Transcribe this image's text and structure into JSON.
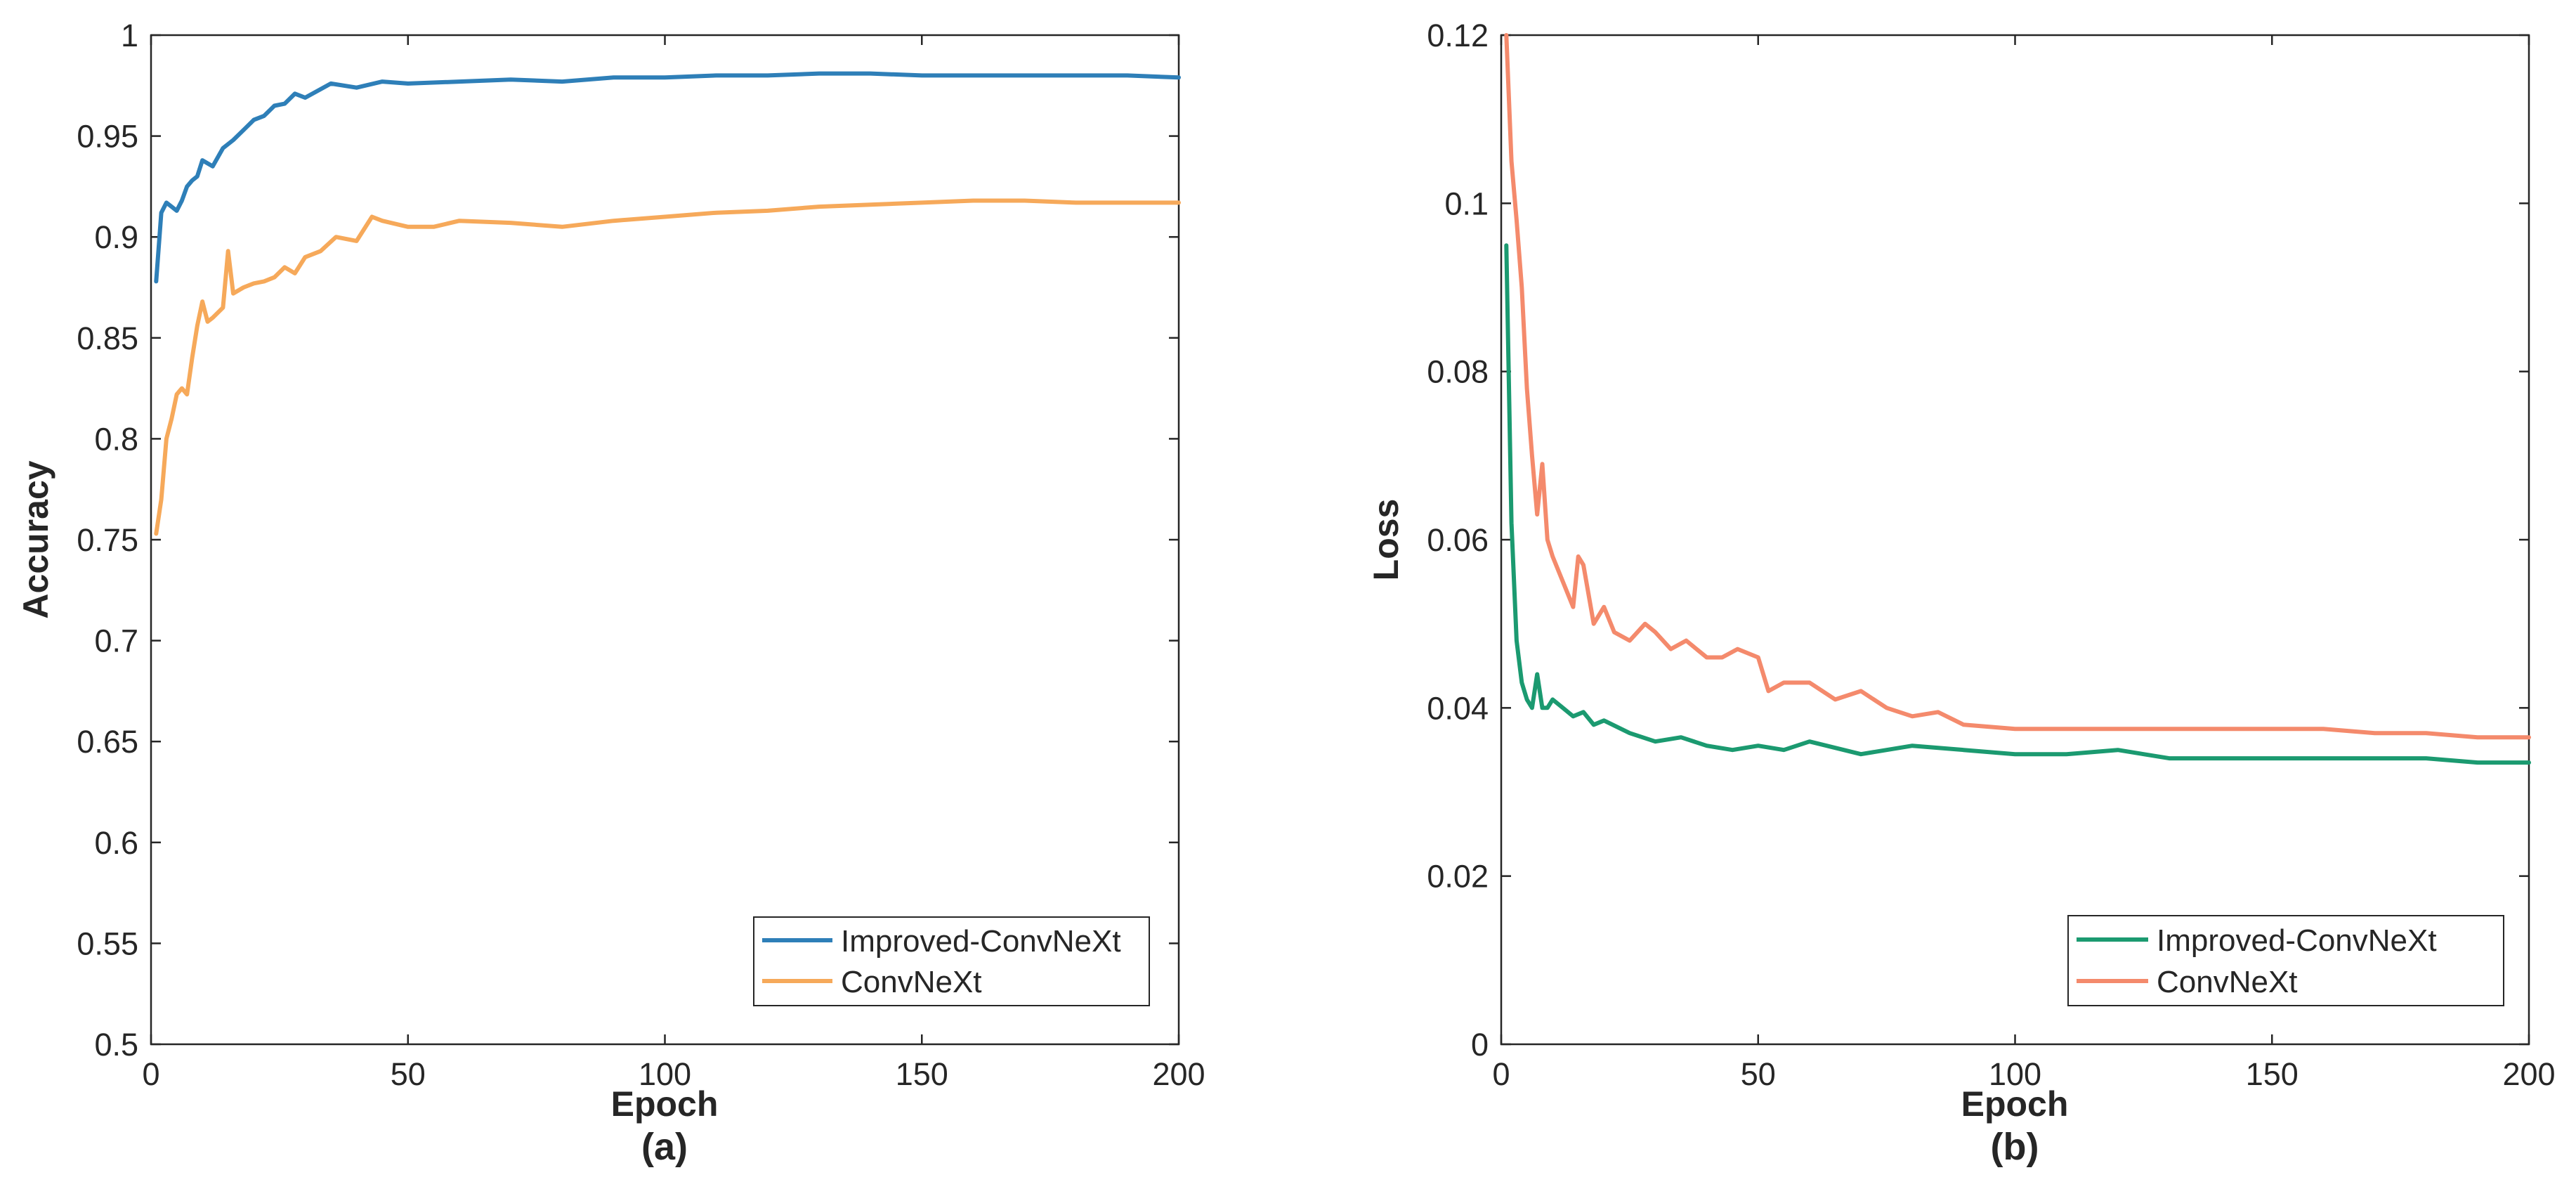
{
  "chart_data": [
    {
      "panel_label": "(a)",
      "type": "line",
      "xlabel": "Epoch",
      "ylabel": "Accuracy",
      "xlim": [
        0,
        200
      ],
      "ylim": [
        0.5,
        1.0
      ],
      "xticks": [
        0,
        50,
        100,
        150,
        200
      ],
      "xtick_labels": [
        "0",
        "50",
        "100",
        "150",
        "200"
      ],
      "yticks": [
        0.5,
        0.55,
        0.6,
        0.65,
        0.7,
        0.75,
        0.8,
        0.85,
        0.9,
        0.95,
        1.0
      ],
      "ytick_labels": [
        "0.5",
        "0.55",
        "0.6",
        "0.65",
        "0.7",
        "0.75",
        "0.8",
        "0.85",
        "0.9",
        "0.95",
        "1"
      ],
      "grid": false,
      "legend_position": "bottom-right",
      "series": [
        {
          "name": "Improved-ConvNeXt",
          "color": "#2e7fb8",
          "x": [
            1,
            2,
            3,
            4,
            5,
            6,
            7,
            8,
            9,
            10,
            12,
            14,
            16,
            18,
            20,
            22,
            24,
            26,
            28,
            30,
            35,
            40,
            45,
            50,
            60,
            70,
            80,
            90,
            100,
            110,
            120,
            130,
            140,
            150,
            160,
            170,
            180,
            190,
            200
          ],
          "values": [
            0.878,
            0.912,
            0.917,
            0.915,
            0.913,
            0.918,
            0.925,
            0.928,
            0.93,
            0.938,
            0.935,
            0.944,
            0.948,
            0.953,
            0.958,
            0.96,
            0.965,
            0.966,
            0.971,
            0.969,
            0.976,
            0.974,
            0.977,
            0.976,
            0.977,
            0.978,
            0.977,
            0.979,
            0.979,
            0.98,
            0.98,
            0.981,
            0.981,
            0.98,
            0.98,
            0.98,
            0.98,
            0.98,
            0.979
          ]
        },
        {
          "name": "ConvNeXt",
          "color": "#f6a95a",
          "x": [
            1,
            2,
            3,
            4,
            5,
            6,
            7,
            8,
            9,
            10,
            11,
            12,
            14,
            15,
            16,
            18,
            20,
            22,
            24,
            26,
            28,
            30,
            33,
            36,
            40,
            43,
            45,
            50,
            55,
            60,
            70,
            80,
            90,
            100,
            110,
            120,
            130,
            140,
            150,
            160,
            170,
            180,
            190,
            200
          ],
          "values": [
            0.753,
            0.77,
            0.8,
            0.81,
            0.822,
            0.825,
            0.822,
            0.84,
            0.856,
            0.868,
            0.858,
            0.86,
            0.865,
            0.893,
            0.872,
            0.875,
            0.877,
            0.878,
            0.88,
            0.885,
            0.882,
            0.89,
            0.893,
            0.9,
            0.898,
            0.91,
            0.908,
            0.905,
            0.905,
            0.908,
            0.907,
            0.905,
            0.908,
            0.91,
            0.912,
            0.913,
            0.915,
            0.916,
            0.917,
            0.918,
            0.918,
            0.917,
            0.917,
            0.917
          ]
        }
      ]
    },
    {
      "panel_label": "(b)",
      "type": "line",
      "xlabel": "Epoch",
      "ylabel": "Loss",
      "xlim": [
        0,
        200
      ],
      "ylim": [
        0,
        0.12
      ],
      "xticks": [
        0,
        50,
        100,
        150,
        200
      ],
      "xtick_labels": [
        "0",
        "50",
        "100",
        "150",
        "200"
      ],
      "yticks": [
        0,
        0.02,
        0.04,
        0.06,
        0.08,
        0.1,
        0.12
      ],
      "ytick_labels": [
        "0",
        "0.02",
        "0.04",
        "0.06",
        "0.08",
        "0.1",
        "0.12"
      ],
      "grid": false,
      "legend_position": "bottom-right",
      "series": [
        {
          "name": "Improved-ConvNeXt",
          "color": "#1b9a70",
          "x": [
            1,
            2,
            3,
            4,
            5,
            6,
            7,
            8,
            9,
            10,
            12,
            14,
            16,
            18,
            20,
            25,
            30,
            35,
            40,
            45,
            50,
            55,
            60,
            70,
            80,
            90,
            100,
            110,
            120,
            130,
            140,
            150,
            160,
            170,
            180,
            190,
            200
          ],
          "values": [
            0.095,
            0.062,
            0.048,
            0.043,
            0.041,
            0.04,
            0.044,
            0.04,
            0.04,
            0.041,
            0.04,
            0.039,
            0.0395,
            0.038,
            0.0385,
            0.037,
            0.036,
            0.0365,
            0.0355,
            0.035,
            0.0355,
            0.035,
            0.036,
            0.0345,
            0.0355,
            0.035,
            0.0345,
            0.0345,
            0.035,
            0.034,
            0.034,
            0.034,
            0.034,
            0.034,
            0.034,
            0.0335,
            0.0335
          ]
        },
        {
          "name": "ConvNeXt",
          "color": "#f48a6c",
          "x": [
            1,
            2,
            3,
            4,
            5,
            6,
            7,
            8,
            9,
            10,
            12,
            14,
            15,
            16,
            18,
            20,
            22,
            25,
            28,
            30,
            33,
            36,
            40,
            43,
            46,
            50,
            52,
            55,
            60,
            65,
            70,
            75,
            80,
            85,
            90,
            100,
            110,
            120,
            130,
            140,
            150,
            160,
            170,
            180,
            190,
            200
          ],
          "values": [
            0.12,
            0.105,
            0.098,
            0.09,
            0.078,
            0.07,
            0.063,
            0.069,
            0.06,
            0.058,
            0.055,
            0.052,
            0.058,
            0.057,
            0.05,
            0.052,
            0.049,
            0.048,
            0.05,
            0.049,
            0.047,
            0.048,
            0.046,
            0.046,
            0.047,
            0.046,
            0.042,
            0.043,
            0.043,
            0.041,
            0.042,
            0.04,
            0.039,
            0.0395,
            0.038,
            0.0375,
            0.0375,
            0.0375,
            0.0375,
            0.0375,
            0.0375,
            0.0375,
            0.037,
            0.037,
            0.0365,
            0.0365
          ]
        }
      ]
    }
  ]
}
